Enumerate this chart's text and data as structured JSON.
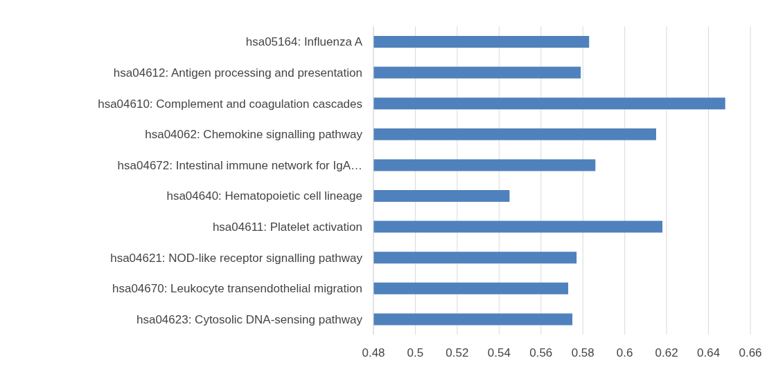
{
  "chart_data": {
    "type": "bar",
    "orientation": "horizontal",
    "categories": [
      "hsa05164: Influenza A",
      "hsa04612: Antigen processing and presentation",
      "hsa04610: Complement and coagulation cascades",
      "hsa04062: Chemokine signalling pathway",
      "hsa04672: Intestinal immune network for IgA…",
      "hsa04640: Hematopoietic cell lineage",
      "hsa04611: Platelet activation",
      "hsa04621: NOD-like receptor signalling pathway",
      "hsa04670: Leukocyte transendothelial migration",
      "hsa04623: Cytosolic DNA-sensing pathway"
    ],
    "values": [
      0.583,
      0.579,
      0.648,
      0.615,
      0.586,
      0.545,
      0.618,
      0.577,
      0.573,
      0.575
    ],
    "color": "#4f81bd",
    "xlim": [
      0.48,
      0.66
    ],
    "xticks": [
      0.48,
      0.5,
      0.52,
      0.54,
      0.56,
      0.58,
      0.6,
      0.62,
      0.64,
      0.66
    ],
    "grid": "x"
  }
}
